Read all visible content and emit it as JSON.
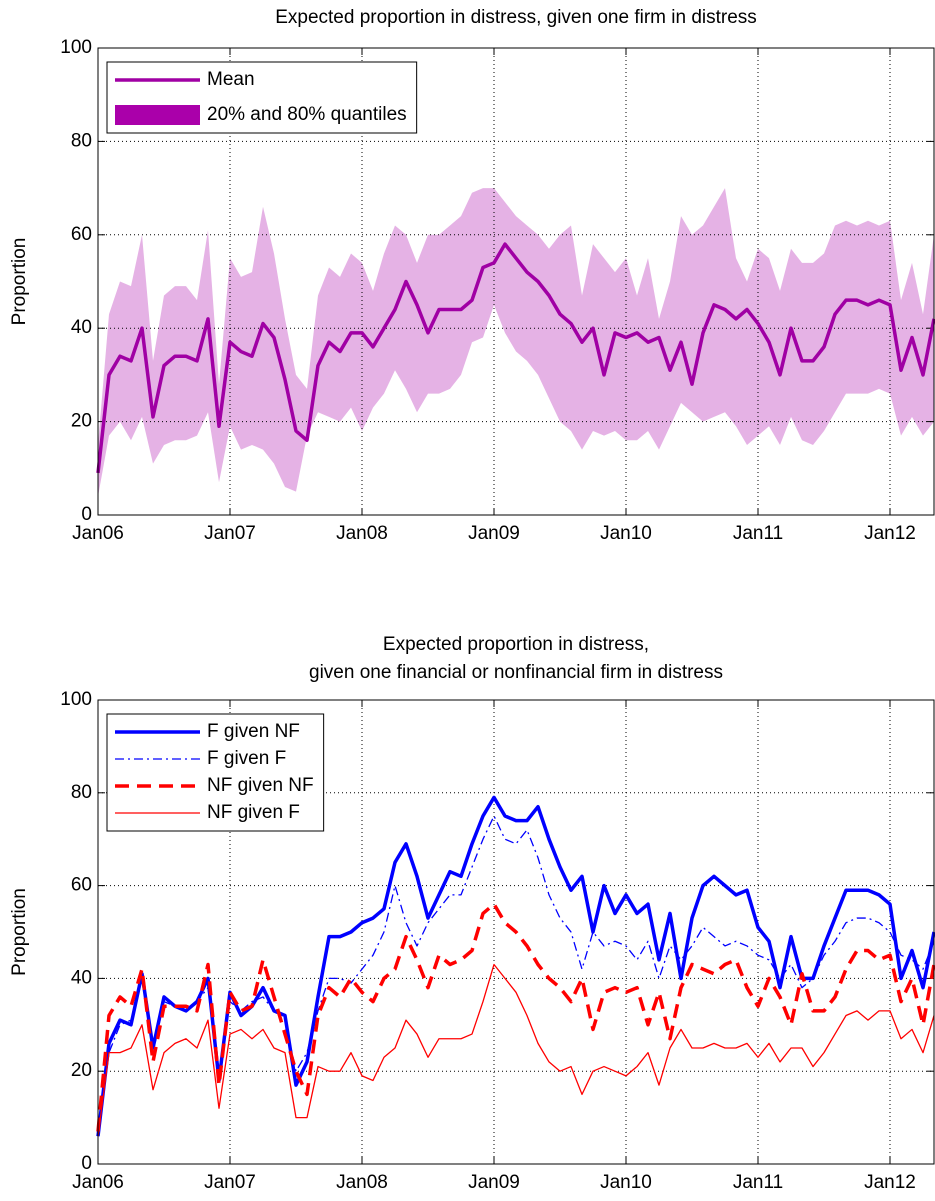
{
  "chart_data": [
    {
      "type": "band-line",
      "title": "Expected proportion in distress, given one firm in distress",
      "ylabel": "Proportion",
      "categories": [
        "Jan06",
        null,
        null,
        null,
        null,
        null,
        null,
        null,
        null,
        null,
        null,
        null,
        "Jan07",
        null,
        null,
        null,
        null,
        null,
        null,
        null,
        null,
        null,
        null,
        null,
        "Jan08",
        null,
        null,
        null,
        null,
        null,
        null,
        null,
        null,
        null,
        null,
        null,
        "Jan09",
        null,
        null,
        null,
        null,
        null,
        null,
        null,
        null,
        null,
        null,
        null,
        "Jan10",
        null,
        null,
        null,
        null,
        null,
        null,
        null,
        null,
        null,
        null,
        null,
        "Jan11",
        null,
        null,
        null,
        null,
        null,
        null,
        null,
        null,
        null,
        null,
        null,
        "Jan12",
        null,
        null,
        null,
        null
      ],
      "series": [
        {
          "name": "Mean",
          "color": "#a000a4",
          "linestyle": "solid",
          "weight": "bold",
          "values": [
            9,
            30,
            34,
            33,
            40,
            21,
            32,
            34,
            34,
            33,
            42,
            19,
            37,
            35,
            34,
            41,
            38,
            29,
            18,
            16,
            32,
            37,
            35,
            39,
            39,
            36,
            40,
            44,
            50,
            45,
            39,
            44,
            44,
            44,
            46,
            53,
            54,
            58,
            55,
            52,
            50,
            47,
            43,
            41,
            37,
            40,
            30,
            39,
            38,
            39,
            37,
            38,
            31,
            37,
            28,
            39,
            45,
            44,
            42,
            44,
            41,
            37,
            30,
            40,
            33,
            33,
            36,
            43,
            46,
            46,
            45,
            46,
            45,
            31,
            38,
            30,
            42
          ]
        },
        {
          "name": "20% and 80% quantiles",
          "color": "#aa00aa",
          "opacity": 0.3,
          "lower": [
            4,
            17,
            20,
            16,
            21,
            11,
            15,
            16,
            16,
            17,
            22,
            7,
            19,
            14,
            15,
            14,
            11,
            6,
            5,
            17,
            22,
            21,
            20,
            23,
            18,
            23,
            26,
            31,
            27,
            22,
            26,
            26,
            27,
            30,
            37,
            38,
            45,
            39,
            35,
            33,
            30,
            25,
            20,
            18,
            14,
            18,
            17,
            18,
            16,
            16,
            18,
            14,
            19,
            24,
            22,
            20,
            21,
            22,
            19,
            15,
            17,
            19,
            15,
            21,
            16,
            15,
            18,
            22,
            26,
            26,
            26,
            27,
            26,
            17,
            21,
            17,
            20
          ],
          "upper": [
            15,
            43,
            50,
            49,
            60,
            33,
            47,
            49,
            49,
            46,
            61,
            28,
            55,
            51,
            52,
            66,
            56,
            42,
            30,
            27,
            47,
            53,
            51,
            56,
            54,
            48,
            56,
            62,
            60,
            54,
            60,
            60,
            62,
            64,
            69,
            70,
            70,
            67,
            64,
            62,
            60,
            57,
            60,
            62,
            47,
            58,
            55,
            52,
            55,
            47,
            55,
            42,
            50,
            64,
            60,
            62,
            66,
            70,
            55,
            50,
            57,
            55,
            48,
            57,
            54,
            54,
            56,
            62,
            63,
            62,
            63,
            62,
            63,
            46,
            54,
            43,
            60
          ]
        }
      ],
      "ylim": [
        0,
        100
      ],
      "yticks": [
        0,
        20,
        40,
        60,
        80,
        100
      ],
      "grid": true,
      "legend": "upper left"
    },
    {
      "type": "line",
      "title": [
        "Expected proportion in distress,",
        "given one financial or nonfinancial firm in distress"
      ],
      "ylabel": "Proportion",
      "categories": [
        "Jan06",
        null,
        null,
        null,
        null,
        null,
        null,
        null,
        null,
        null,
        null,
        null,
        "Jan07",
        null,
        null,
        null,
        null,
        null,
        null,
        null,
        null,
        null,
        null,
        null,
        "Jan08",
        null,
        null,
        null,
        null,
        null,
        null,
        null,
        null,
        null,
        null,
        null,
        "Jan09",
        null,
        null,
        null,
        null,
        null,
        null,
        null,
        null,
        null,
        null,
        null,
        "Jan10",
        null,
        null,
        null,
        null,
        null,
        null,
        null,
        null,
        null,
        null,
        null,
        "Jan11",
        null,
        null,
        null,
        null,
        null,
        null,
        null,
        null,
        null,
        null,
        null,
        "Jan12",
        null,
        null,
        null,
        null
      ],
      "series": [
        {
          "name": "F given NF",
          "color": "#0000ff",
          "linestyle": "solid",
          "weight": "bold",
          "values": [
            6,
            26,
            31,
            30,
            41,
            25,
            36,
            34,
            33,
            35,
            40,
            18,
            37,
            32,
            34,
            38,
            33,
            32,
            17,
            22,
            36,
            49,
            49,
            50,
            52,
            53,
            55,
            65,
            69,
            62,
            53,
            58,
            63,
            62,
            69,
            75,
            79,
            75,
            74,
            74,
            77,
            70,
            64,
            59,
            62,
            50,
            60,
            54,
            58,
            54,
            56,
            44,
            54,
            40,
            53,
            60,
            62,
            60,
            58,
            59,
            51,
            48,
            38,
            49,
            40,
            40,
            47,
            53,
            59,
            59,
            59,
            58,
            56,
            40,
            46,
            38,
            50
          ]
        },
        {
          "name": "F given F",
          "color": "#0000ff",
          "linestyle": "dashdot",
          "weight": "normal",
          "values": [
            8,
            24,
            30,
            31,
            40,
            24,
            35,
            34,
            33,
            35,
            38,
            20,
            35,
            33,
            35,
            36,
            33,
            31,
            20,
            24,
            33,
            40,
            40,
            39,
            42,
            45,
            50,
            60,
            52,
            47,
            52,
            55,
            58,
            58,
            64,
            70,
            75,
            70,
            69,
            72,
            66,
            58,
            53,
            50,
            42,
            50,
            47,
            48,
            47,
            44,
            48,
            40,
            47,
            44,
            47,
            51,
            49,
            47,
            48,
            47,
            45,
            44,
            40,
            43,
            38,
            40,
            45,
            48,
            52,
            53,
            53,
            52,
            50,
            45,
            44,
            42,
            48
          ]
        },
        {
          "name": "NF given NF",
          "color": "#ff0000",
          "linestyle": "dashed",
          "weight": "bold",
          "values": [
            7,
            32,
            36,
            34,
            42,
            22,
            34,
            34,
            34,
            33,
            43,
            17,
            37,
            33,
            34,
            44,
            36,
            28,
            20,
            15,
            32,
            38,
            36,
            40,
            37,
            35,
            40,
            42,
            49,
            44,
            38,
            45,
            43,
            44,
            46,
            54,
            56,
            52,
            50,
            47,
            43,
            40,
            38,
            35,
            40,
            29,
            37,
            38,
            37,
            38,
            30,
            37,
            27,
            38,
            43,
            42,
            41,
            43,
            44,
            38,
            34,
            40,
            36,
            30,
            41,
            33,
            33,
            36,
            42,
            46,
            46,
            44,
            45,
            35,
            40,
            30,
            43
          ]
        },
        {
          "name": "NF given F",
          "color": "#ff0000",
          "linestyle": "solid",
          "weight": "normal",
          "values": [
            6,
            24,
            24,
            25,
            30,
            16,
            24,
            26,
            27,
            25,
            31,
            12,
            28,
            29,
            27,
            29,
            25,
            24,
            10,
            10,
            21,
            20,
            20,
            24,
            19,
            18,
            23,
            25,
            31,
            28,
            23,
            27,
            27,
            27,
            28,
            35,
            43,
            40,
            37,
            32,
            26,
            22,
            20,
            21,
            15,
            20,
            21,
            20,
            19,
            21,
            24,
            17,
            25,
            29,
            25,
            25,
            26,
            25,
            25,
            26,
            23,
            26,
            22,
            25,
            25,
            21,
            24,
            28,
            32,
            33,
            31,
            33,
            33,
            27,
            29,
            24,
            32
          ]
        }
      ],
      "ylim": [
        0,
        100
      ],
      "yticks": [
        0,
        20,
        40,
        60,
        80,
        100
      ],
      "grid": true,
      "legend": "upper left"
    }
  ]
}
